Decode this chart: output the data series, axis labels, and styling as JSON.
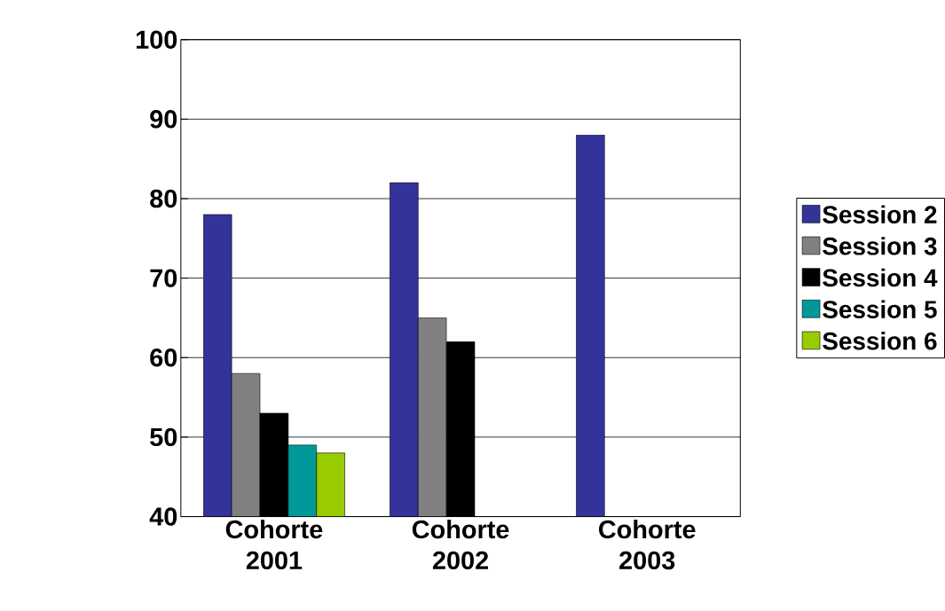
{
  "chart_data": {
    "type": "bar",
    "categories": [
      "Cohorte 2001",
      "Cohorte 2002",
      "Cohorte 2003"
    ],
    "series": [
      {
        "name": "Session 2",
        "color": "#333399",
        "values": [
          78,
          82,
          88
        ]
      },
      {
        "name": "Session 3",
        "color": "#808080",
        "values": [
          58,
          65,
          null
        ]
      },
      {
        "name": "Session 4",
        "color": "#000000",
        "values": [
          53,
          62,
          null
        ]
      },
      {
        "name": "Session 5",
        "color": "#009999",
        "values": [
          49,
          null,
          null
        ]
      },
      {
        "name": "Session 6",
        "color": "#99cc00",
        "values": [
          48,
          null,
          null
        ]
      }
    ],
    "ylim": [
      40,
      100
    ],
    "yticks": [
      40,
      50,
      60,
      70,
      80,
      90,
      100
    ],
    "grid": "y",
    "legend": "right"
  }
}
